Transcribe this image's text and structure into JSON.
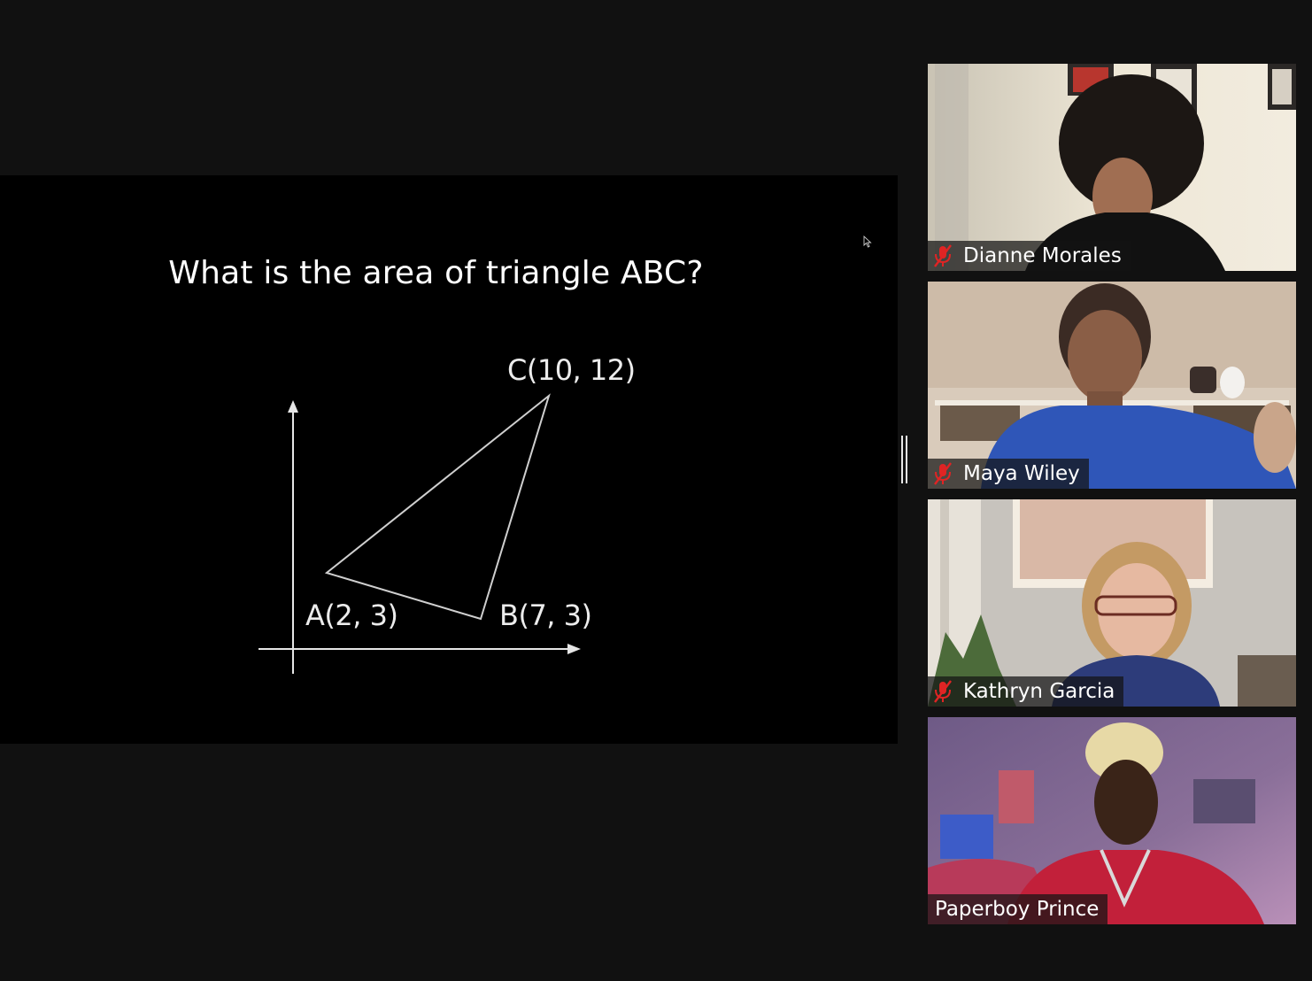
{
  "slide": {
    "title": "What is the area of triangle ABC?",
    "points": {
      "a": "A(2, 3)",
      "b": "B(7, 3)",
      "c": "C(10, 12)"
    }
  },
  "participants": [
    {
      "name": "Dianne Morales",
      "muted": true
    },
    {
      "name": "Maya Wiley",
      "muted": true
    },
    {
      "name": "Kathryn Garcia",
      "muted": true
    },
    {
      "name": "Paperboy Prince",
      "muted": false
    }
  ],
  "colors": {
    "background": "#111111",
    "slide_background": "#000000",
    "mute_icon": "#e02424"
  }
}
